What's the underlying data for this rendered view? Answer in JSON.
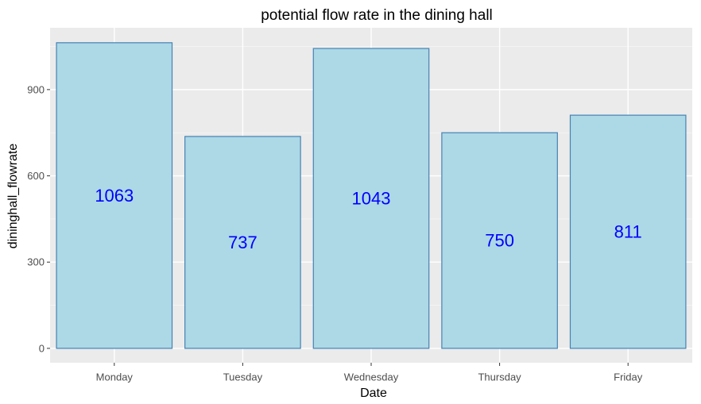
{
  "chart_data": {
    "type": "bar",
    "title": "potential flow rate in the dining hall",
    "xlabel": "Date",
    "ylabel": "dininghall_flowrate",
    "categories": [
      "Monday",
      "Tuesday",
      "Wednesday",
      "Thursday",
      "Friday"
    ],
    "values": [
      1063,
      737,
      1043,
      750,
      811
    ],
    "data_labels": [
      "1063",
      "737",
      "1043",
      "750",
      "811"
    ],
    "ylim": [
      -50,
      1115
    ],
    "yticks": [
      0,
      300,
      600,
      900
    ],
    "grid": true,
    "legend": "none",
    "colors": {
      "bar_fill": "#add8e6",
      "bar_stroke": "#4682b4",
      "label_text": "#0000ff",
      "panel_background": "#ebebeb",
      "grid_major": "#ffffff",
      "grid_minor": "#f5f5f5"
    }
  }
}
